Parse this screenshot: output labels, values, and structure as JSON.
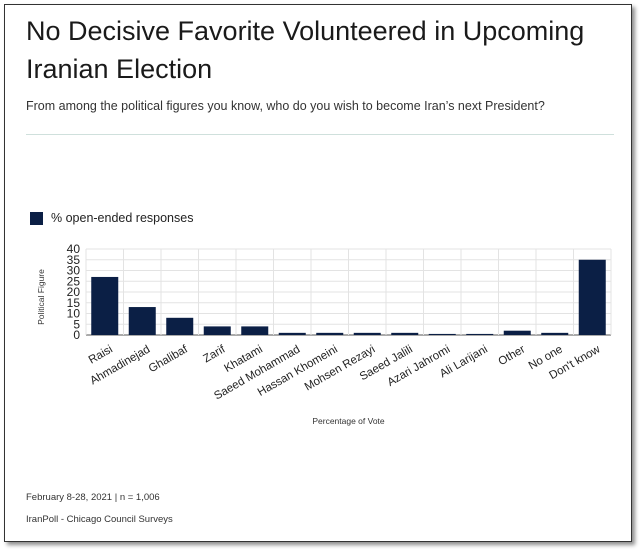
{
  "title": "No Decisive Favorite Volunteered in Upcoming Iranian Election",
  "subtitle": "From among the political figures you know, who do you wish to become Iran’s next President?",
  "colors": {
    "bar": "#0b1f45",
    "grid": "#e3e3e3"
  },
  "footer": {
    "date_sample": "February 8-28, 2021 | n = 1,006",
    "source": "IranPoll - Chicago Council Surveys"
  },
  "chart_data": {
    "type": "bar",
    "categories": [
      "Raisi",
      "Ahmadinejad",
      "Ghalibaf",
      "Zarif",
      "Khatami",
      "Saeed Mohammad",
      "Hassan Khomeini",
      "Mohsen Rezayi",
      "Saeed Jalili",
      "Azari Jahromi",
      "Ali Larijani",
      "Other",
      "No one",
      "Don't know"
    ],
    "series": [
      {
        "name": "% open-ended responses",
        "values": [
          27,
          13,
          8,
          4,
          4,
          1,
          1,
          1,
          1,
          0.5,
          0.5,
          2,
          1,
          35
        ]
      }
    ],
    "xlabel": "Percentage of Vote",
    "ylabel": "Political Figure",
    "ylim": [
      0,
      40
    ],
    "yticks": [
      0,
      5,
      10,
      15,
      20,
      25,
      30,
      35,
      40
    ],
    "grid": true,
    "legend": "top-left"
  }
}
